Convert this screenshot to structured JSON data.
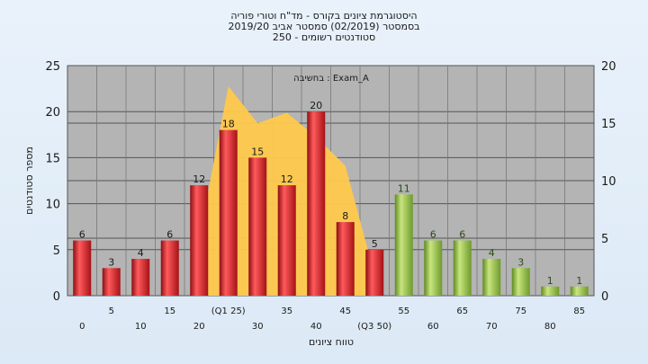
{
  "chart_data": {
    "type": "bar",
    "title_lines": [
      "היסטוגרמת ציונים בקורס - מד\"ח וטורי פוריה",
      "בסמסטר  (02/2019)  סמסטר אביב 2019/20",
      "סטודנטים רשומים - 250"
    ],
    "annotation": "בחשיבה : Exam_A",
    "xlabel": "טווח ציונים",
    "ylabel": "מספר סטודנטים",
    "ylim": [
      0,
      25
    ],
    "y_ticks": [
      0,
      5,
      10,
      15,
      20,
      25
    ],
    "y2lim": [
      0,
      20
    ],
    "y2_ticks": [
      0,
      5,
      10,
      15,
      20
    ],
    "grid": true,
    "categories": [
      "0",
      "5",
      "10",
      "15",
      "20",
      "(Q1 25)",
      "30",
      "35",
      "40",
      "45",
      "(Q3 50)",
      "55",
      "60",
      "65",
      "70",
      "75",
      "80",
      "85"
    ],
    "values": [
      6,
      3,
      4,
      6,
      12,
      18,
      15,
      12,
      20,
      8,
      5,
      11,
      6,
      6,
      4,
      3,
      1,
      1
    ],
    "bar_colors": [
      "red",
      "red",
      "red",
      "red",
      "red",
      "red",
      "red",
      "red",
      "red",
      "red",
      "red",
      "green",
      "green",
      "green",
      "green",
      "green",
      "green",
      "green"
    ],
    "area_series": {
      "axis": "right",
      "x_start": 20,
      "x_end": 50,
      "x": [
        20,
        25,
        30,
        35,
        40,
        45,
        50
      ],
      "values": [
        5.0,
        18.2,
        15.0,
        15.9,
        13.8,
        11.3,
        1.8
      ]
    },
    "colors": {
      "red_bar": "#e0262a",
      "green_bar": "#98c24a",
      "area_fill": "#ffc94d",
      "plot_bg": "#b4b4b4"
    }
  }
}
